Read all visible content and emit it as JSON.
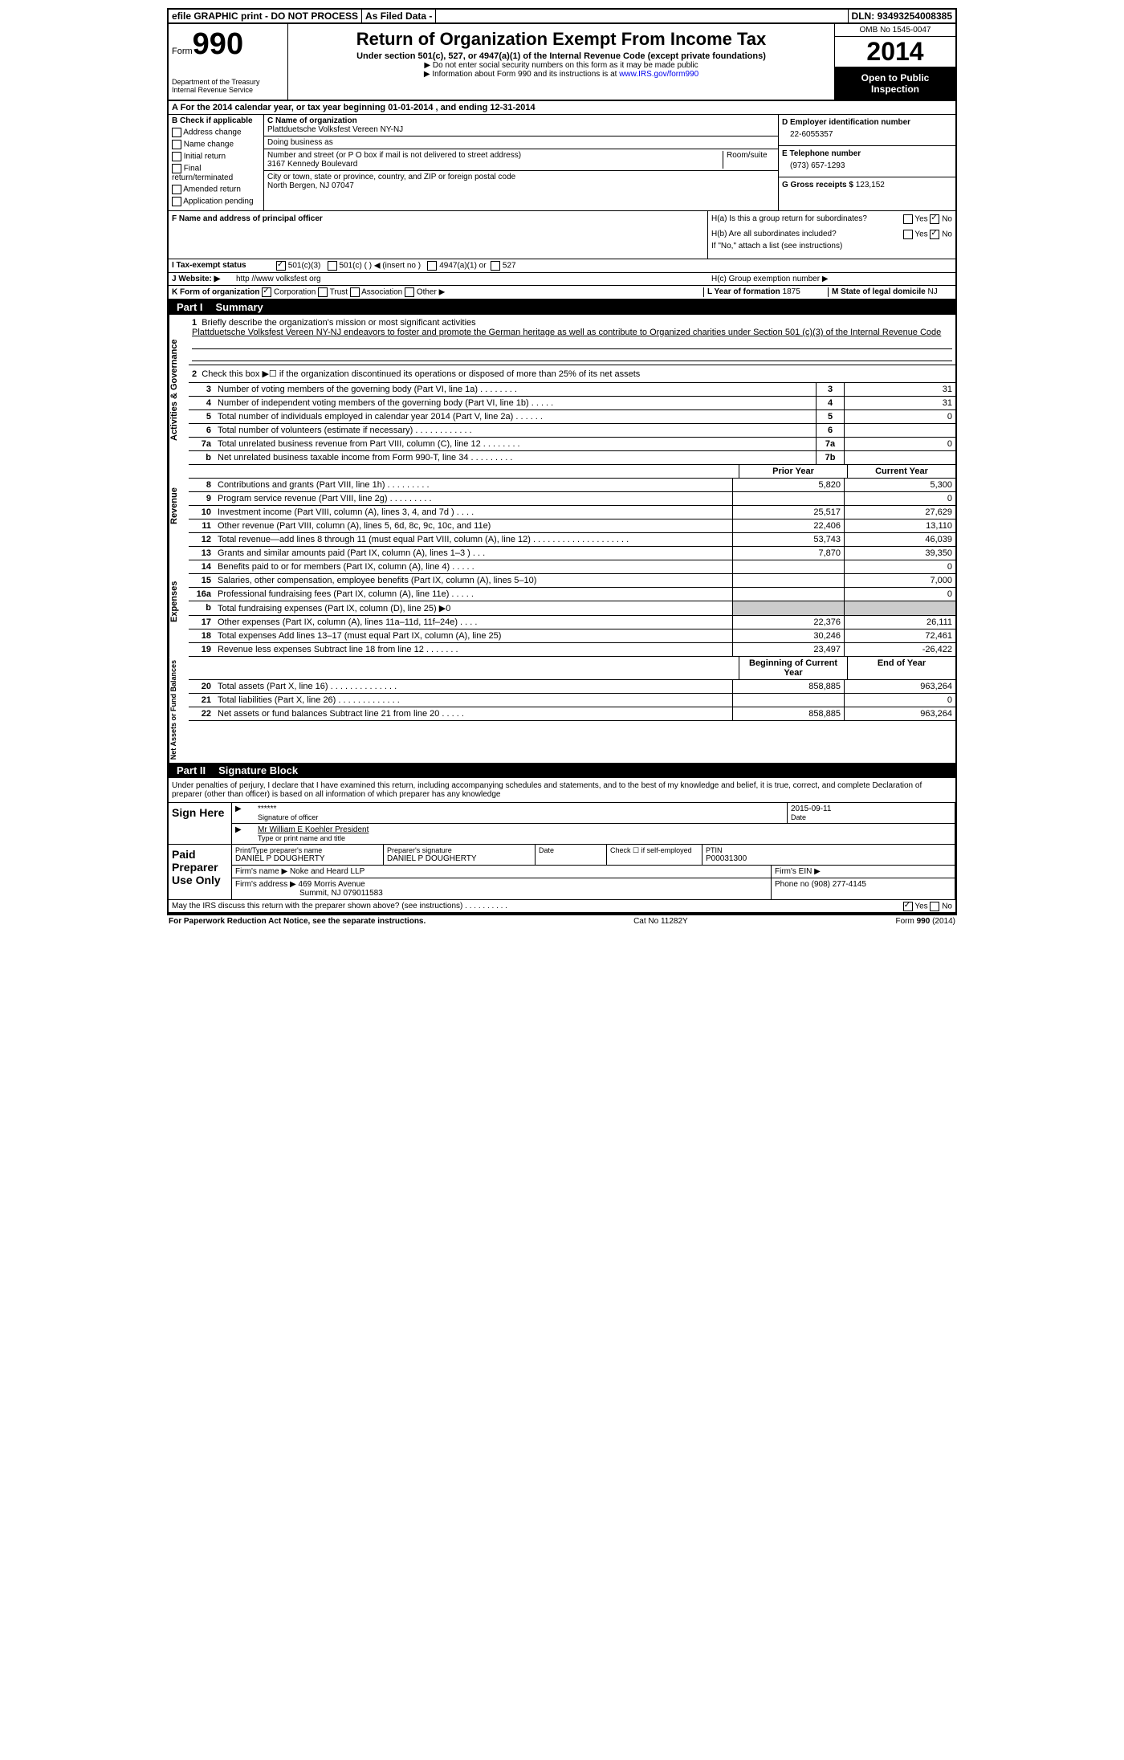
{
  "topbar": {
    "efile": "efile GRAPHIC print - DO NOT PROCESS",
    "asfiled": "As Filed Data -",
    "dln_label": "DLN:",
    "dln": "93493254008385"
  },
  "header": {
    "form_label": "Form",
    "form_num": "990",
    "dept": "Department of the Treasury",
    "irs": "Internal Revenue Service",
    "title": "Return of Organization Exempt From Income Tax",
    "subtitle": "Under section 501(c), 527, or 4947(a)(1) of the Internal Revenue Code (except private foundations)",
    "note1": "▶ Do not enter social security numbers on this form as it may be made public",
    "note2_pre": "▶ Information about Form 990 and its instructions is at ",
    "note2_link": "www.IRS.gov/form990",
    "omb": "OMB No 1545-0047",
    "year": "2014",
    "open": "Open to Public Inspection"
  },
  "row_a": "A  For the 2014 calendar year, or tax year beginning 01-01-2014    , and ending 12-31-2014",
  "col_b": {
    "header": "B  Check if applicable",
    "items": [
      "Address change",
      "Name change",
      "Initial return",
      "Final return/terminated",
      "Amended return",
      "Application pending"
    ]
  },
  "col_c": {
    "name_label": "C Name of organization",
    "name": "Plattduetsche Volksfest Vereen NY-NJ",
    "dba_label": "Doing business as",
    "addr_label": "Number and street (or P O box if mail is not delivered to street address)",
    "room_label": "Room/suite",
    "addr": "3167 Kennedy Boulevard",
    "city_label": "City or town, state or province, country, and ZIP or foreign postal code",
    "city": "North Bergen, NJ  07047",
    "officer_label": "F  Name and address of principal officer"
  },
  "col_d": {
    "ein_label": "D Employer identification number",
    "ein": "22-6055357",
    "phone_label": "E Telephone number",
    "phone": "(973) 657-1293",
    "gross_label": "G Gross receipts $",
    "gross": "123,152"
  },
  "h_section": {
    "ha": "H(a)  Is this a group return for subordinates?",
    "hb": "H(b)  Are all subordinates included?",
    "hb_note": "If \"No,\" attach a list (see instructions)",
    "hc": "H(c)  Group exemption number ▶",
    "yes": "Yes",
    "no": "No"
  },
  "row_i": {
    "label": "I   Tax-exempt status",
    "opt1": "501(c)(3)",
    "opt2": "501(c) (  ) ◀ (insert no )",
    "opt3": "4947(a)(1) or",
    "opt4": "527"
  },
  "row_j": {
    "label": "J  Website: ▶",
    "url": "http //www volksfest org"
  },
  "row_k": {
    "label": "K Form of organization",
    "opts": [
      "Corporation",
      "Trust",
      "Association",
      "Other ▶"
    ],
    "year_label": "L Year of formation",
    "year": "1875",
    "state_label": "M State of legal domicile",
    "state": "NJ"
  },
  "part1": {
    "header": "Part I",
    "title": "Summary",
    "vtab1": "Activities & Governance",
    "vtab2": "Revenue",
    "vtab3": "Expenses",
    "vtab4": "Net Assets or Fund Balances",
    "line1_label": "Briefly describe the organization's mission or most significant activities",
    "line1_text": "Plattduetsche Volksfest Vereen NY-NJ endeavors to foster and promote the German heritage as well as contribute to Organized charities under Section 501 (c)(3) of the Internal Revenue Code",
    "line2": "Check this box ▶☐ if the organization discontinued its operations or disposed of more than 25% of its net assets",
    "lines_gov": [
      {
        "n": "3",
        "d": "Number of voting members of the governing body (Part VI, line 1a)  .   .   .   .   .   .   .   .",
        "b": "3",
        "v": "31"
      },
      {
        "n": "4",
        "d": "Number of independent voting members of the governing body (Part VI, line 1b)   .   .   .   .   .",
        "b": "4",
        "v": "31"
      },
      {
        "n": "5",
        "d": "Total number of individuals employed in calendar year 2014 (Part V, line 2a)  .   .   .   .   .   .",
        "b": "5",
        "v": "0"
      },
      {
        "n": "6",
        "d": "Total number of volunteers (estimate if necessary)  .   .   .   .   .   .   .   .   .   .   .   .",
        "b": "6",
        "v": ""
      },
      {
        "n": "7a",
        "d": "Total unrelated business revenue from Part VIII, column (C), line 12   .   .   .   .   .   .   .   .",
        "b": "7a",
        "v": "0"
      },
      {
        "n": "b",
        "d": "Net unrelated business taxable income from Form 990-T, line 34  .   .   .   .   .   .   .   .   .",
        "b": "7b",
        "v": ""
      }
    ],
    "ch_prior": "Prior Year",
    "ch_current": "Current Year",
    "lines_rev": [
      {
        "n": "8",
        "d": "Contributions and grants (Part VIII, line 1h)   .   .   .   .   .   .   .   .   .",
        "p": "5,820",
        "c": "5,300"
      },
      {
        "n": "9",
        "d": "Program service revenue (Part VIII, line 2g)   .   .   .   .   .   .   .   .   .",
        "p": "",
        "c": "0"
      },
      {
        "n": "10",
        "d": "Investment income (Part VIII, column (A), lines 3, 4, and 7d )   .   .   .   .",
        "p": "25,517",
        "c": "27,629"
      },
      {
        "n": "11",
        "d": "Other revenue (Part VIII, column (A), lines 5, 6d, 8c, 9c, 10c, and 11e)",
        "p": "22,406",
        "c": "13,110"
      },
      {
        "n": "12",
        "d": "Total revenue—add lines 8 through 11 (must equal Part VIII, column (A), line 12)  .   .   .   .   .   .   .   .   .   .   .   .   .   .   .   .   .   .   .   .",
        "p": "53,743",
        "c": "46,039"
      }
    ],
    "lines_exp": [
      {
        "n": "13",
        "d": "Grants and similar amounts paid (Part IX, column (A), lines 1–3 )   .   .   .",
        "p": "7,870",
        "c": "39,350"
      },
      {
        "n": "14",
        "d": "Benefits paid to or for members (Part IX, column (A), line 4)   .   .   .   .   .",
        "p": "",
        "c": "0"
      },
      {
        "n": "15",
        "d": "Salaries, other compensation, employee benefits (Part IX, column (A), lines 5–10)",
        "p": "",
        "c": "7,000"
      },
      {
        "n": "16a",
        "d": "Professional fundraising fees (Part IX, column (A), line 11e)   .   .   .   .   .",
        "p": "",
        "c": "0"
      },
      {
        "n": "b",
        "d": "Total fundraising expenses (Part IX, column (D), line 25) ▶0",
        "p": "SHADED",
        "c": "SHADED"
      },
      {
        "n": "17",
        "d": "Other expenses (Part IX, column (A), lines 11a–11d, 11f–24e)   .   .   .   .",
        "p": "22,376",
        "c": "26,111"
      },
      {
        "n": "18",
        "d": "Total expenses Add lines 13–17 (must equal Part IX, column (A), line 25)",
        "p": "30,246",
        "c": "72,461"
      },
      {
        "n": "19",
        "d": "Revenue less expenses Subtract line 18 from line 12   .   .   .   .   .   .   .",
        "p": "23,497",
        "c": "-26,422"
      }
    ],
    "ch_boy": "Beginning of Current Year",
    "ch_eoy": "End of Year",
    "lines_net": [
      {
        "n": "20",
        "d": "Total assets (Part X, line 16)  .   .   .   .   .   .   .   .   .   .   .   .   .   .",
        "p": "858,885",
        "c": "963,264"
      },
      {
        "n": "21",
        "d": "Total liabilities (Part X, line 26)   .   .   .   .   .   .   .   .   .   .   .   .   .",
        "p": "",
        "c": "0"
      },
      {
        "n": "22",
        "d": "Net assets or fund balances Subtract line 21 from line 20   .   .   .   .   .",
        "p": "858,885",
        "c": "963,264"
      }
    ]
  },
  "part2": {
    "header": "Part II",
    "title": "Signature Block",
    "perjury": "Under penalties of perjury, I declare that I have examined this return, including accompanying schedules and statements, and to the best of my knowledge and belief, it is true, correct, and complete Declaration of preparer (other than officer) is based on all information of which preparer has any knowledge",
    "sign_here": "Sign Here",
    "sig_stars": "******",
    "sig_officer_label": "Signature of officer",
    "sig_date": "2015-09-11",
    "date_label": "Date",
    "officer_name": "Mr William E Koehler President",
    "type_label": "Type or print name and title",
    "paid_prep": "Paid Preparer Use Only",
    "prep_name_label": "Print/Type preparer's name",
    "prep_name": "DANIEL P DOUGHERTY",
    "prep_sig_label": "Preparer's signature",
    "prep_sig": "DANIEL P DOUGHERTY",
    "check_self": "Check ☐ if self-employed",
    "ptin_label": "PTIN",
    "ptin": "P00031300",
    "firm_name_label": "Firm's name   ▶",
    "firm_name": "Noke and Heard LLP",
    "firm_ein_label": "Firm's EIN ▶",
    "firm_addr_label": "Firm's address ▶",
    "firm_addr": "469 Morris Avenue",
    "firm_city": "Summit, NJ  079011583",
    "firm_phone_label": "Phone no",
    "firm_phone": "(908) 277-4145",
    "discuss": "May the IRS discuss this return with the preparer shown above? (see instructions)   .   .   .   .   .   .   .   .   .   .",
    "discuss_yes": "Yes",
    "discuss_no": "No"
  },
  "footer": {
    "pra": "For Paperwork Reduction Act Notice, see the separate instructions.",
    "cat": "Cat No 11282Y",
    "form": "Form 990 (2014)"
  }
}
